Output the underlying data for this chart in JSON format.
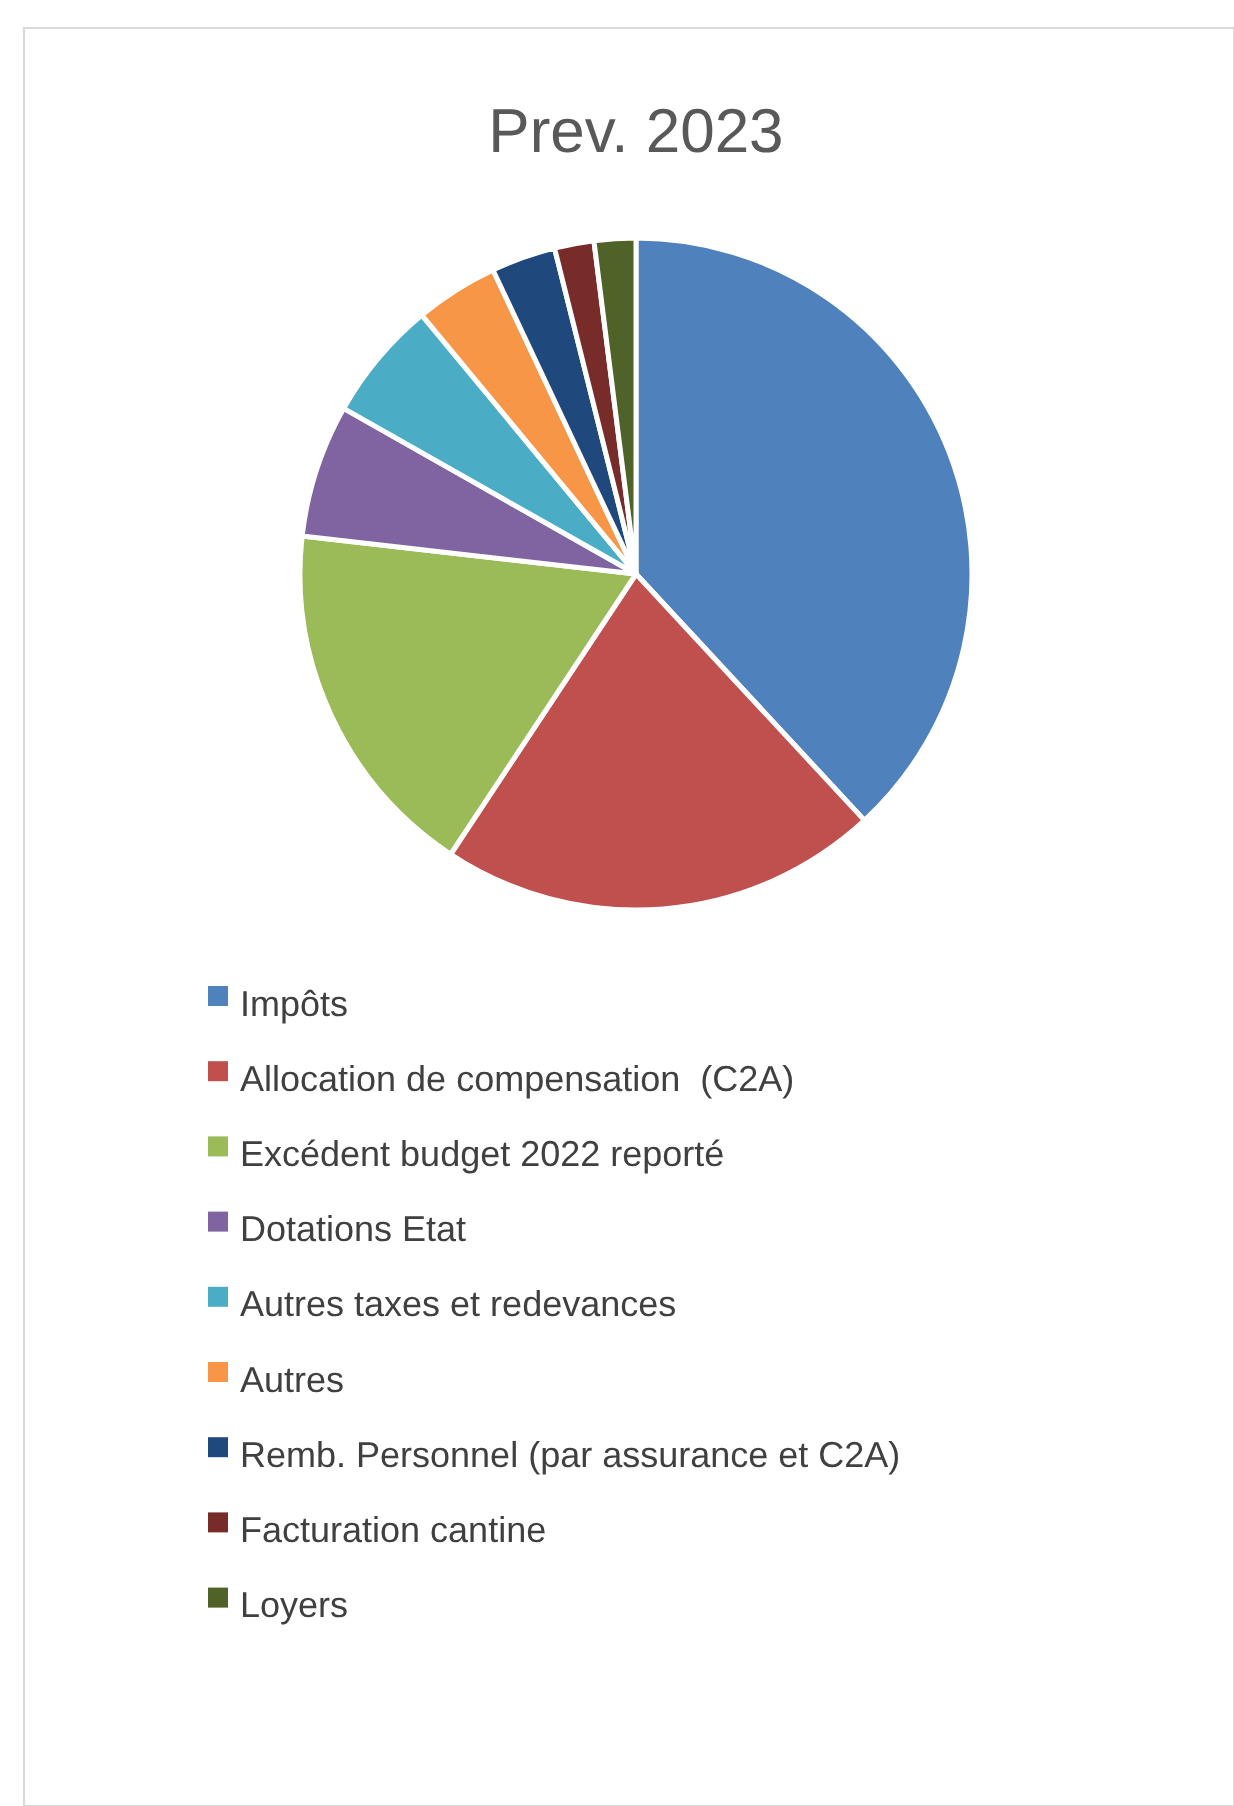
{
  "chart_data": {
    "type": "pie",
    "title": "Prev. 2023",
    "legend": "bottom",
    "categories": [
      "Impôts",
      "Allocation de compensation  (C2A)",
      "Excédent budget 2022 reporté",
      "Dotations Etat",
      "Autres taxes et redevances",
      "Autres",
      "Remb. Personnel (par assurance et C2A)",
      "Facturation cantine",
      "Loyers"
    ],
    "values": [
      38.1,
      21.2,
      17.5,
      6.4,
      5.8,
      4.0,
      3.1,
      1.9,
      2.0
    ],
    "colors": [
      "#4f81bd",
      "#c0504d",
      "#9bbb59",
      "#8064a2",
      "#4bacc6",
      "#f79646",
      "#1f497d",
      "#772c2a",
      "#4f6228"
    ]
  }
}
